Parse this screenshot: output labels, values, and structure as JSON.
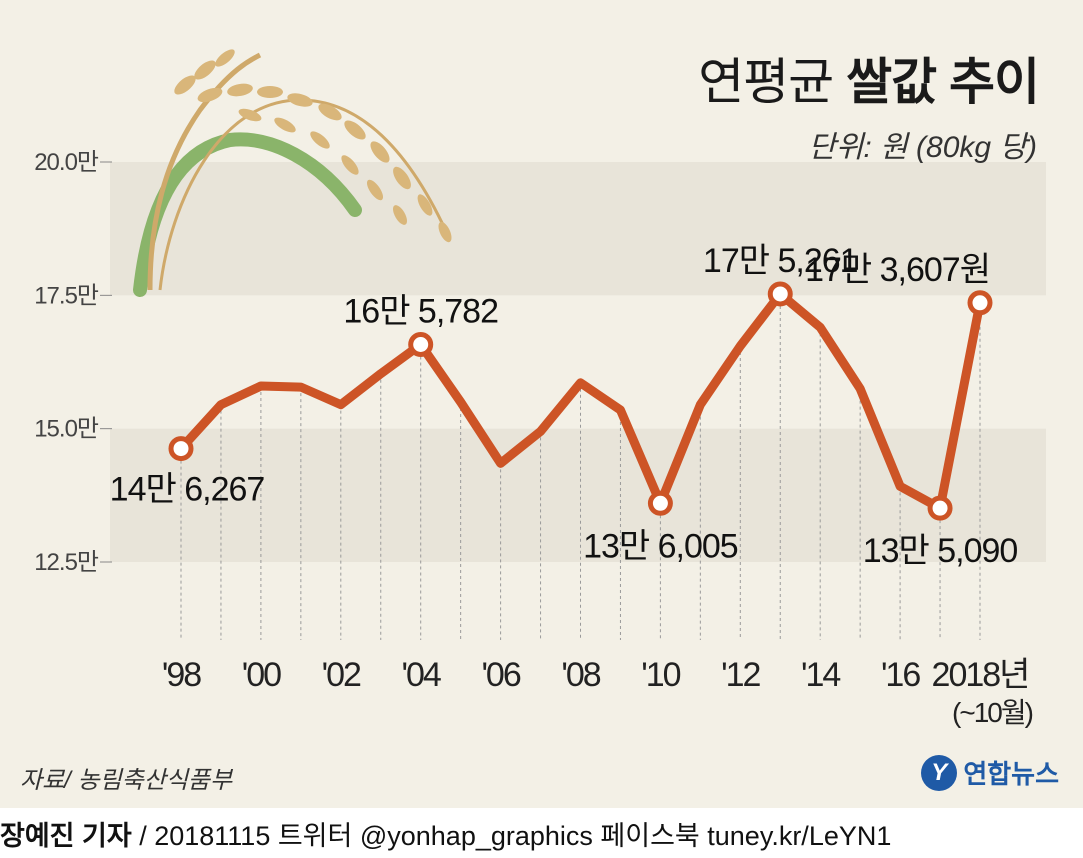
{
  "title": {
    "light": "연평균",
    "bold": "쌀값 추이"
  },
  "unit": "단위: 원 (80kg 당)",
  "source": "자료/ 농림축산식품부",
  "brand": {
    "logo_letter": "Y",
    "name": "연합뉴스"
  },
  "footer": {
    "reporter": "장예진 기자",
    "rest": " / 20181115 트위터 @yonhap_graphics  페이스북 tuney.kr/LeYN1"
  },
  "colors": {
    "line": "#cd5426",
    "band": "#e8e4d9",
    "background": "#f3f0e6",
    "brand": "#1f5aa6"
  },
  "icons": {
    "decoration": "rice-plant-icon"
  },
  "chart_data": {
    "type": "line",
    "ylim": [
      125000,
      200000
    ],
    "yticks": [
      {
        "value": 200000,
        "label": "20.0만"
      },
      {
        "value": 175000,
        "label": "17.5만"
      },
      {
        "value": 150000,
        "label": "15.0만"
      },
      {
        "value": 125000,
        "label": "12.5만"
      }
    ],
    "x": [
      1998,
      1999,
      2000,
      2001,
      2002,
      2003,
      2004,
      2005,
      2006,
      2007,
      2008,
      2009,
      2010,
      2011,
      2012,
      2013,
      2014,
      2015,
      2016,
      2017,
      2018
    ],
    "values": [
      146267,
      154500,
      158000,
      157800,
      154500,
      160300,
      165782,
      155000,
      143500,
      149500,
      158600,
      153500,
      136005,
      154500,
      165500,
      175261,
      169000,
      157500,
      139200,
      135090,
      173607
    ],
    "xtick_labels": [
      {
        "x": 1998,
        "label": "'98"
      },
      {
        "x": 2000,
        "label": "'00"
      },
      {
        "x": 2002,
        "label": "'02"
      },
      {
        "x": 2004,
        "label": "'04"
      },
      {
        "x": 2006,
        "label": "'06"
      },
      {
        "x": 2008,
        "label": "'08"
      },
      {
        "x": 2010,
        "label": "'10"
      },
      {
        "x": 2012,
        "label": "'12"
      },
      {
        "x": 2014,
        "label": "'14"
      },
      {
        "x": 2016,
        "label": "'16"
      },
      {
        "x": 2018,
        "label": "2018년"
      }
    ],
    "xtick_note": "(~10월)",
    "data_labels": [
      {
        "x": 1998,
        "text": "14만 6,267",
        "pos": "below"
      },
      {
        "x": 2004,
        "text": "16만 5,782",
        "pos": "above"
      },
      {
        "x": 2010,
        "text": "13만 6,005",
        "pos": "below"
      },
      {
        "x": 2013,
        "text": "17만 5,261",
        "pos": "above"
      },
      {
        "x": 2017,
        "text": "13만 5,090",
        "pos": "below"
      },
      {
        "x": 2018,
        "text": "17만 3,607원",
        "pos": "above-left"
      }
    ],
    "highlighted": [
      1998,
      2004,
      2010,
      2013,
      2017,
      2018
    ]
  }
}
